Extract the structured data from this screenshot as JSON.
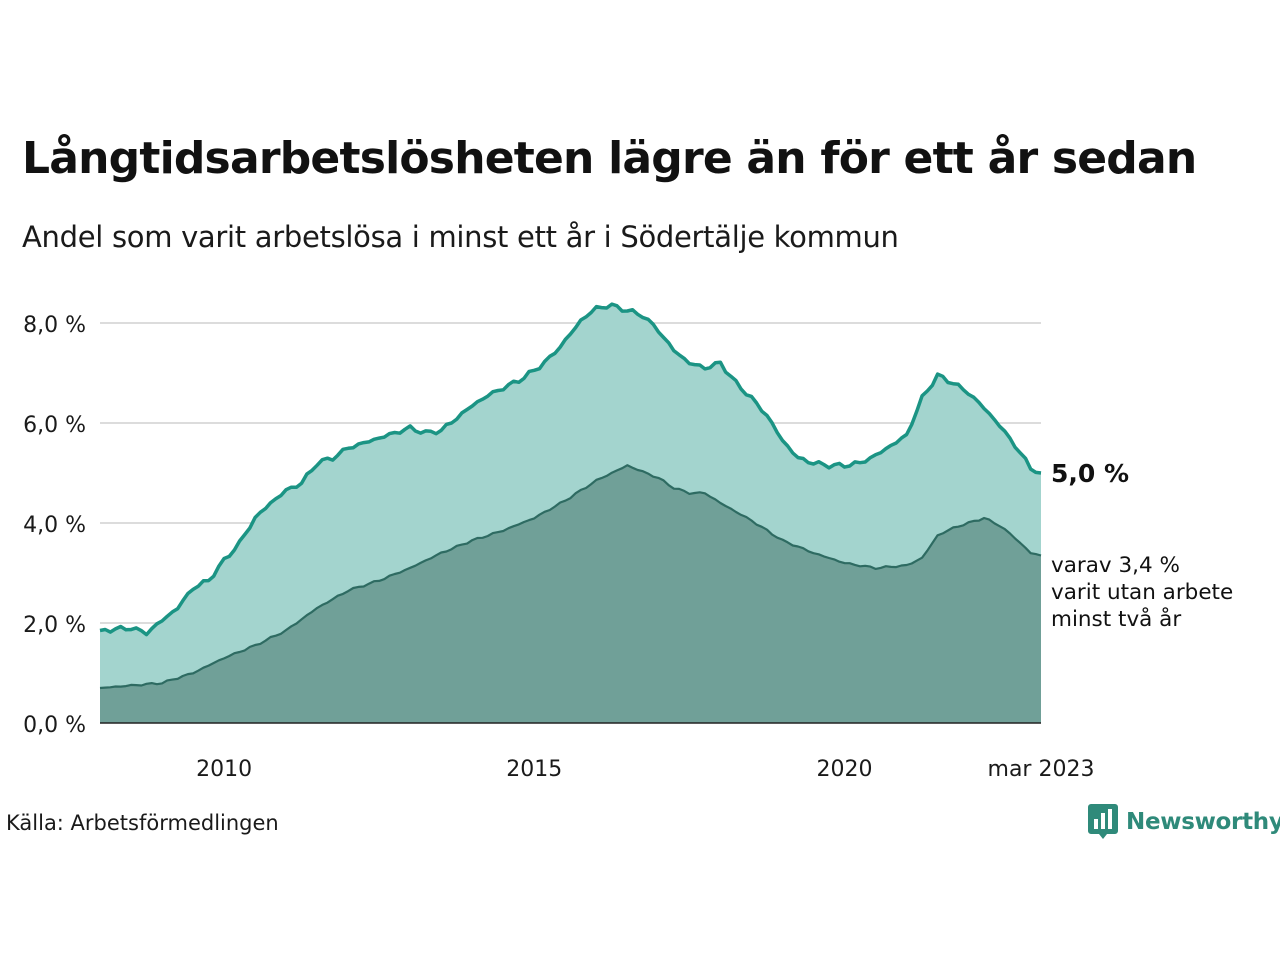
{
  "title": "Långtidsarbetslösheten lägre än för ett år sedan",
  "subtitle": "Andel som varit arbetslösa i minst ett år i Södertälje kommun",
  "source": "Källa: Arbetsförmedlingen",
  "logo": {
    "text": "Newsworthy",
    "icon": "newsworthy-bar-chart-icon"
  },
  "colors": {
    "main_line": "#1b9484",
    "main_fill": "#a3d4ce",
    "sub_line": "#2e6b62",
    "sub_fill": "#70a098",
    "grid": "#dcdcdc",
    "text": "#111111"
  },
  "chart_data": {
    "type": "area",
    "x_start": "2008-01",
    "x_end": "2023-03",
    "xticks": [
      {
        "date": "2010-01",
        "label": "2010"
      },
      {
        "date": "2015-01",
        "label": "2015"
      },
      {
        "date": "2020-01",
        "label": "2020"
      },
      {
        "date": "2023-03",
        "label": "mar 2023"
      }
    ],
    "ylim": [
      0,
      8.5
    ],
    "yticks": [
      {
        "value": 0,
        "label": "0,0 %"
      },
      {
        "value": 2,
        "label": "2,0 %"
      },
      {
        "value": 4,
        "label": "4,0 %"
      },
      {
        "value": 6,
        "label": "6,0 %"
      },
      {
        "value": 8,
        "label": "8,0 %"
      }
    ],
    "grid": true,
    "series": [
      {
        "name": "Andel som varit arbetslösa i minst ett år",
        "points": [
          [
            "2008-01",
            1.85
          ],
          [
            "2008-07",
            1.9
          ],
          [
            "2008-10",
            1.8
          ],
          [
            "2009-01",
            2.05
          ],
          [
            "2009-04",
            2.3
          ],
          [
            "2009-07",
            2.7
          ],
          [
            "2009-10",
            2.85
          ],
          [
            "2010-01",
            3.25
          ],
          [
            "2010-04",
            3.6
          ],
          [
            "2010-07",
            4.1
          ],
          [
            "2010-10",
            4.4
          ],
          [
            "2011-01",
            4.65
          ],
          [
            "2011-04",
            4.8
          ],
          [
            "2011-07",
            5.2
          ],
          [
            "2011-10",
            5.3
          ],
          [
            "2012-01",
            5.5
          ],
          [
            "2012-04",
            5.6
          ],
          [
            "2012-07",
            5.7
          ],
          [
            "2012-10",
            5.8
          ],
          [
            "2013-01",
            5.9
          ],
          [
            "2013-04",
            5.8
          ],
          [
            "2013-07",
            5.85
          ],
          [
            "2013-10",
            6.1
          ],
          [
            "2014-01",
            6.35
          ],
          [
            "2014-04",
            6.55
          ],
          [
            "2014-07",
            6.7
          ],
          [
            "2014-10",
            6.85
          ],
          [
            "2015-01",
            7.05
          ],
          [
            "2015-04",
            7.3
          ],
          [
            "2015-07",
            7.65
          ],
          [
            "2015-10",
            8.05
          ],
          [
            "2016-01",
            8.3
          ],
          [
            "2016-04",
            8.35
          ],
          [
            "2016-07",
            8.25
          ],
          [
            "2016-10",
            8.15
          ],
          [
            "2017-01",
            7.85
          ],
          [
            "2017-04",
            7.45
          ],
          [
            "2017-07",
            7.2
          ],
          [
            "2017-10",
            7.1
          ],
          [
            "2018-01",
            7.2
          ],
          [
            "2018-04",
            6.8
          ],
          [
            "2018-07",
            6.5
          ],
          [
            "2018-10",
            6.15
          ],
          [
            "2019-01",
            5.65
          ],
          [
            "2019-04",
            5.3
          ],
          [
            "2019-07",
            5.2
          ],
          [
            "2019-10",
            5.15
          ],
          [
            "2020-01",
            5.15
          ],
          [
            "2020-04",
            5.2
          ],
          [
            "2020-07",
            5.35
          ],
          [
            "2020-10",
            5.55
          ],
          [
            "2021-01",
            5.75
          ],
          [
            "2021-04",
            6.5
          ],
          [
            "2021-07",
            6.95
          ],
          [
            "2021-10",
            6.8
          ],
          [
            "2022-01",
            6.6
          ],
          [
            "2022-04",
            6.3
          ],
          [
            "2022-07",
            5.95
          ],
          [
            "2022-10",
            5.55
          ],
          [
            "2023-01",
            5.1
          ],
          [
            "2023-03",
            5.0
          ]
        ]
      },
      {
        "name": "varav varit utan arbete minst två år",
        "points": [
          [
            "2008-01",
            0.7
          ],
          [
            "2008-07",
            0.75
          ],
          [
            "2009-01",
            0.8
          ],
          [
            "2009-07",
            1.0
          ],
          [
            "2010-01",
            1.3
          ],
          [
            "2010-07",
            1.55
          ],
          [
            "2011-01",
            1.85
          ],
          [
            "2011-07",
            2.3
          ],
          [
            "2012-01",
            2.65
          ],
          [
            "2012-07",
            2.85
          ],
          [
            "2013-01",
            3.1
          ],
          [
            "2013-07",
            3.4
          ],
          [
            "2014-01",
            3.65
          ],
          [
            "2014-07",
            3.85
          ],
          [
            "2015-01",
            4.1
          ],
          [
            "2015-07",
            4.45
          ],
          [
            "2016-01",
            4.85
          ],
          [
            "2016-07",
            5.15
          ],
          [
            "2017-01",
            4.9
          ],
          [
            "2017-04",
            4.7
          ],
          [
            "2017-07",
            4.6
          ],
          [
            "2017-10",
            4.6
          ],
          [
            "2018-01",
            4.4
          ],
          [
            "2018-07",
            4.05
          ],
          [
            "2019-01",
            3.65
          ],
          [
            "2019-07",
            3.4
          ],
          [
            "2020-01",
            3.2
          ],
          [
            "2020-07",
            3.1
          ],
          [
            "2021-01",
            3.15
          ],
          [
            "2021-04",
            3.3
          ],
          [
            "2021-07",
            3.75
          ],
          [
            "2021-10",
            3.9
          ],
          [
            "2022-01",
            4.0
          ],
          [
            "2022-04",
            4.1
          ],
          [
            "2022-07",
            3.95
          ],
          [
            "2022-10",
            3.7
          ],
          [
            "2023-01",
            3.4
          ],
          [
            "2023-03",
            3.35
          ]
        ]
      }
    ],
    "annotations": {
      "main_value": "5,0 %",
      "sub_lines": [
        "varav 3,4 %",
        "varit utan arbete",
        "minst två år"
      ]
    }
  }
}
